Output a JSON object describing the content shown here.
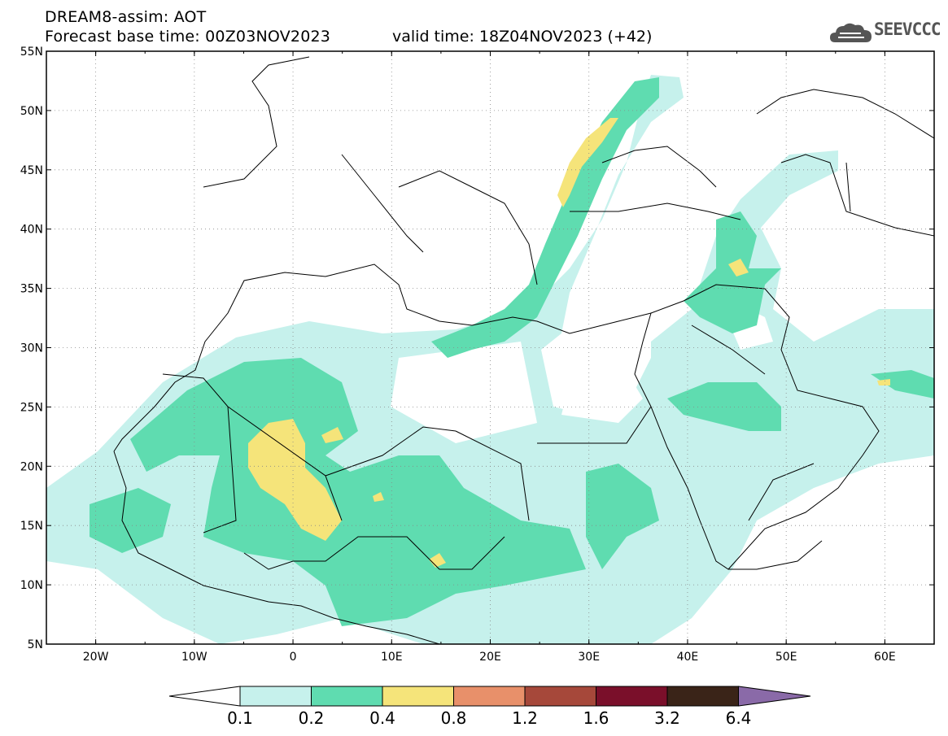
{
  "header": {
    "title": "DREAM8-assim: AOT",
    "base_time": "Forecast base time: 00Z03NOV2023",
    "valid_time": "valid time: 18Z04NOV2023 (+42)",
    "logo_text": "SEEVCCC",
    "logo_icon": "cloud-icon"
  },
  "map": {
    "lon_range": [
      -25,
      65
    ],
    "lat_range": [
      5,
      55
    ],
    "lon_ticks": [
      "20W",
      "10W",
      "0",
      "10E",
      "20E",
      "30E",
      "40E",
      "50E",
      "60E"
    ],
    "lat_ticks": [
      "55N",
      "50N",
      "45N",
      "40N",
      "35N",
      "30N",
      "25N",
      "20N",
      "15N",
      "10N",
      "5N"
    ],
    "gridlines": "dotted"
  },
  "colorbar": {
    "labels": [
      "0.1",
      "0.2",
      "0.4",
      "0.8",
      "1.2",
      "1.6",
      "3.2",
      "6.4"
    ],
    "colors": [
      "#ffffff",
      "#c6f1ec",
      "#5fdcb0",
      "#f5e47a",
      "#e8906a",
      "#a6483a",
      "#7a0f2a",
      "#3a2418",
      "#8a6aa8"
    ]
  }
}
